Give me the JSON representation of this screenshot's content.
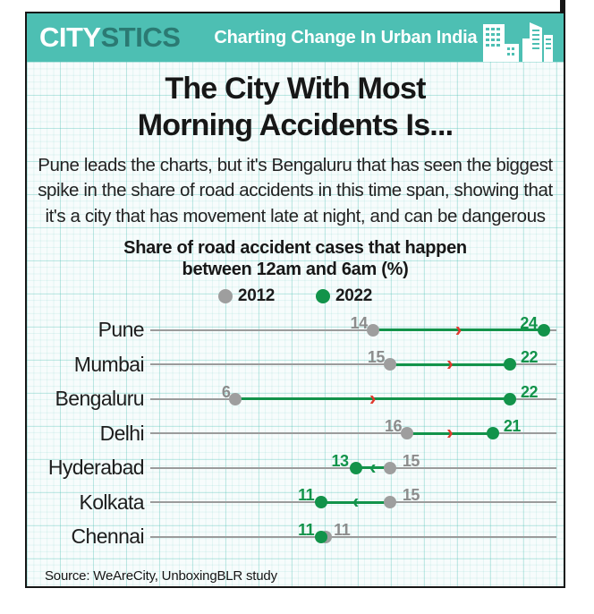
{
  "header": {
    "brand_city": "CITY",
    "brand_stics": "STICS",
    "tagline": "Charting Change In Urban India",
    "skyline_icon": "city-buildings-icon"
  },
  "headline": {
    "line1": "The City With Most",
    "line2": "Morning Accidents Is..."
  },
  "intro_lines": [
    "Pune leads the charts, but it's Bengaluru that has seen the biggest",
    "spike in the share of road accidents in this time span, showing that",
    "it's a city that has movement late at night, and can be dangerous"
  ],
  "chart_data": {
    "type": "dumbbell",
    "title_line1": "Share of road accident cases that happen",
    "title_line2": "between 12am and 6am (%)",
    "legend": [
      {
        "label": "2012",
        "color": "#9e9e9e"
      },
      {
        "label": "2022",
        "color": "#12934a"
      }
    ],
    "categories": [
      "Pune",
      "Mumbai",
      "Bengaluru",
      "Delhi",
      "Hyderabad",
      "Kolkata",
      "Chennai"
    ],
    "series": [
      {
        "name": "2012",
        "values": [
          14,
          15,
          6,
          16,
          15,
          15,
          11
        ]
      },
      {
        "name": "2022",
        "values": [
          24,
          22,
          22,
          21,
          13,
          11,
          11
        ]
      }
    ],
    "value_range": [
      6,
      24
    ],
    "increase_arrow_color": "#e0392e",
    "decrease_arrow_color": "#12934a",
    "grid": "graph-paper",
    "legend_position": "top-center"
  },
  "source": "Source: WeAreCity, UnboxingBLR study",
  "colors": {
    "masthead_teal": "#4dbfb3",
    "brand_dark_teal": "#2b7a73",
    "green_2022": "#12934a",
    "gray_2012": "#9e9e9e",
    "arrow_red": "#e0392e",
    "frame_border": "#161616"
  }
}
